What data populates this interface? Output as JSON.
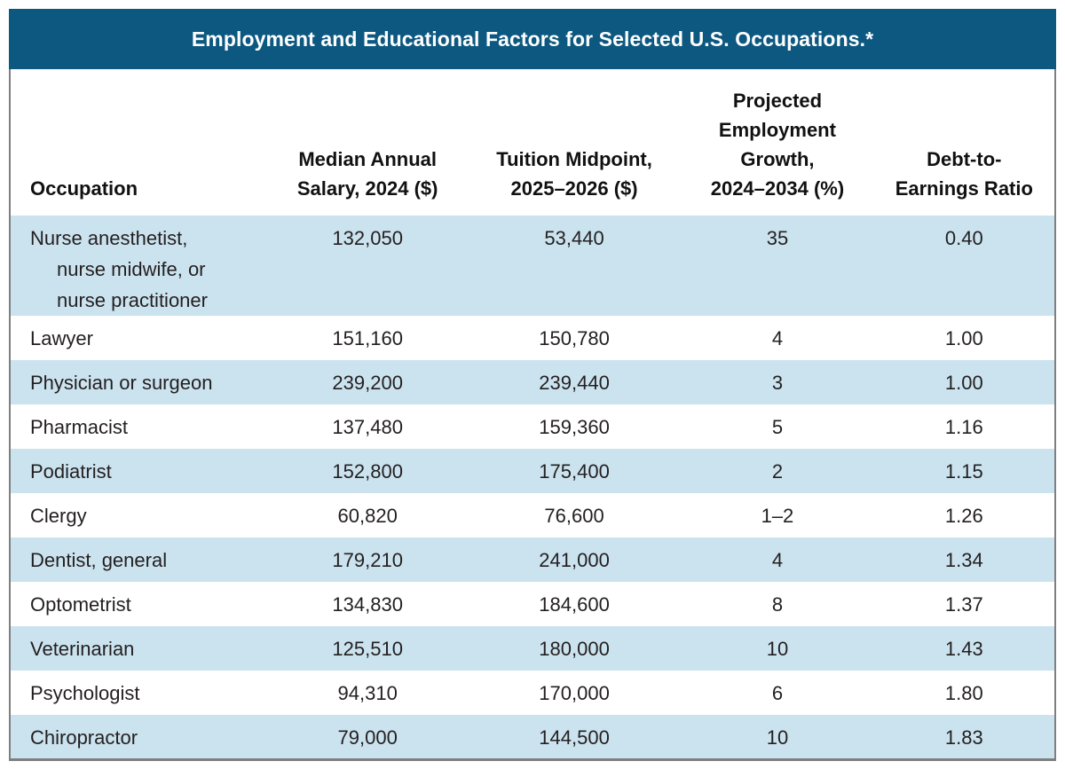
{
  "figure": {
    "title": "Employment and Educational Factors for Selected U.S. Occupations.*"
  },
  "table": {
    "columns": [
      {
        "id": "occupation",
        "label": "Occupation"
      },
      {
        "id": "salary",
        "label": "Median Annual\nSalary, 2024 ($)"
      },
      {
        "id": "tuition",
        "label": "Tuition Midpoint,\n2025–2026 ($)"
      },
      {
        "id": "growth",
        "label": "Projected\nEmployment\nGrowth,\n2024–2034 (%)"
      },
      {
        "id": "ratio",
        "label": "Debt-to-\nEarnings Ratio"
      }
    ],
    "rows": [
      {
        "occupation": "Nurse anesthetist,\nnurse midwife, or\nnurse practitioner",
        "salary": "132,050",
        "tuition": "53,440",
        "growth": "35",
        "ratio": "0.40"
      },
      {
        "occupation": "Lawyer",
        "salary": "151,160",
        "tuition": "150,780",
        "growth": "4",
        "ratio": "1.00"
      },
      {
        "occupation": "Physician or surgeon",
        "salary": "239,200",
        "tuition": "239,440",
        "growth": "3",
        "ratio": "1.00"
      },
      {
        "occupation": "Pharmacist",
        "salary": "137,480",
        "tuition": "159,360",
        "growth": "5",
        "ratio": "1.16"
      },
      {
        "occupation": "Podiatrist",
        "salary": "152,800",
        "tuition": "175,400",
        "growth": "2",
        "ratio": "1.15"
      },
      {
        "occupation": "Clergy",
        "salary": "60,820",
        "tuition": "76,600",
        "growth": "1–2",
        "ratio": "1.26"
      },
      {
        "occupation": "Dentist, general",
        "salary": "179,210",
        "tuition": "241,000",
        "growth": "4",
        "ratio": "1.34"
      },
      {
        "occupation": "Optometrist",
        "salary": "134,830",
        "tuition": "184,600",
        "growth": "8",
        "ratio": "1.37"
      },
      {
        "occupation": "Veterinarian",
        "salary": "125,510",
        "tuition": "180,000",
        "growth": "10",
        "ratio": "1.43"
      },
      {
        "occupation": "Psychologist",
        "salary": "94,310",
        "tuition": "170,000",
        "growth": "6",
        "ratio": "1.80"
      },
      {
        "occupation": "Chiropractor",
        "salary": "79,000",
        "tuition": "144,500",
        "growth": "10",
        "ratio": "1.83"
      }
    ],
    "colors": {
      "title_bar_bg": "#0d5880",
      "title_text": "#ffffff",
      "alt_row_bg": "#cbe3ef",
      "border": "#7f7f7f",
      "text": "#231f20"
    }
  }
}
